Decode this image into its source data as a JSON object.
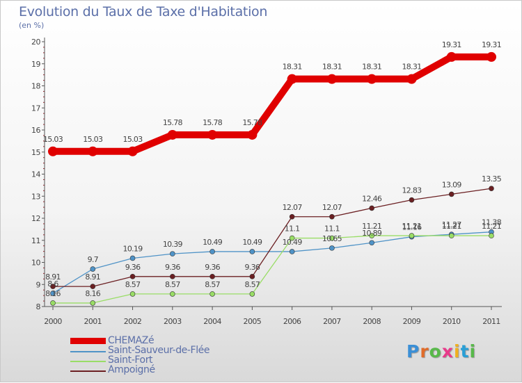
{
  "title": "Evolution du Taux de Taxe d'Habitation",
  "subtitle": "(en %)",
  "logo_text": "Proxiti",
  "logo_colors": [
    "#3b8fd6",
    "#e06c2a",
    "#58b94a",
    "#e83a8a",
    "#f0b020",
    "#2a9fd6",
    "#58b94a"
  ],
  "chart_data": {
    "type": "line",
    "x": [
      2000,
      2001,
      2002,
      2003,
      2004,
      2005,
      2006,
      2007,
      2008,
      2009,
      2010,
      2011
    ],
    "ylim": [
      8,
      20
    ],
    "yticks": [
      8,
      9,
      10,
      11,
      12,
      13,
      14,
      15,
      16,
      17,
      18,
      19,
      20
    ],
    "grid": false,
    "legend_position": "bottom-left",
    "series": [
      {
        "name": "CHEMAZé",
        "color": "#e00000",
        "values": [
          15.03,
          15.03,
          15.03,
          15.78,
          15.78,
          15.78,
          18.31,
          18.31,
          18.31,
          18.31,
          19.31,
          19.31
        ],
        "labels": [
          "15.03",
          "15.03",
          "15.03",
          "15.78",
          "15.78",
          "15.78",
          "18.31",
          "18.31",
          "18.31",
          "18.31",
          "19.31",
          "19.31"
        ]
      },
      {
        "name": "Saint-Sauveur-de-Flée",
        "color": "#4f93c7",
        "values": [
          8.6,
          9.7,
          10.19,
          10.39,
          10.49,
          10.49,
          10.49,
          10.65,
          10.89,
          11.16,
          11.27,
          11.38
        ],
        "labels": [
          "8.6",
          "9.7",
          "10.19",
          "10.39",
          "10.49",
          "10.49",
          "10.49",
          "10.65",
          "10.89",
          "11.16",
          "11.27",
          "11.38"
        ]
      },
      {
        "name": "Saint-Fort",
        "color": "#99dd66",
        "values": [
          8.16,
          8.16,
          8.57,
          8.57,
          8.57,
          8.57,
          11.1,
          11.1,
          11.21,
          11.21,
          11.21,
          11.21
        ],
        "labels": [
          "8.16",
          "8.16",
          "8.57",
          "8.57",
          "8.57",
          "8.57",
          "11.1",
          "11.1",
          "11.21",
          "11.21",
          "11.21",
          "11.21"
        ]
      },
      {
        "name": "Ampoigné",
        "color": "#6b1f22",
        "values": [
          8.91,
          8.91,
          9.36,
          9.36,
          9.36,
          9.36,
          12.07,
          12.07,
          12.46,
          12.83,
          13.09,
          13.35
        ],
        "labels": [
          "8.91",
          "8.91",
          "9.36",
          "9.36",
          "9.36",
          "9.36",
          "12.07",
          "12.07",
          "12.46",
          "12.83",
          "13.09",
          "13.35"
        ]
      }
    ]
  }
}
